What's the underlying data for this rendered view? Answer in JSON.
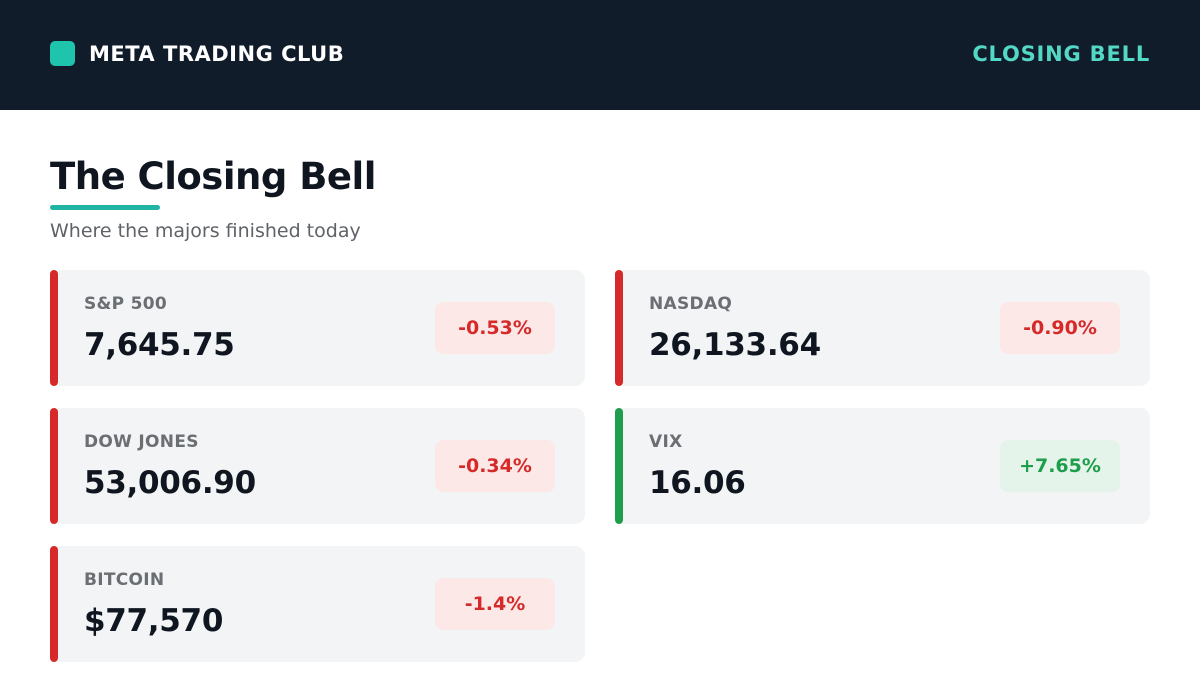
{
  "header": {
    "brand": "META TRADING CLUB",
    "tag": "CLOSING BELL"
  },
  "page": {
    "title": "The Closing Bell",
    "subtitle": "Where the majors finished today"
  },
  "colors": {
    "header_bg": "#111c2b",
    "brand_icon": "#1fc4ad",
    "tag_text": "#53d8c6",
    "title_underline": "#1fb5a2",
    "card_bg": "#f2f4f5",
    "negative_accent": "#d62a2a",
    "negative_text": "#d62a2a",
    "negative_pill_bg": "#fde8e8",
    "positive_accent": "#1e9e4c",
    "positive_text": "#1e9e4c",
    "positive_pill_bg": "#e4f4ea"
  },
  "markets": [
    {
      "label": "S&P 500",
      "value": "7,645.75",
      "change": "-0.53%",
      "direction": "down"
    },
    {
      "label": "NASDAQ",
      "value": "26,133.64",
      "change": "-0.90%",
      "direction": "down"
    },
    {
      "label": "DOW JONES",
      "value": "53,006.90",
      "change": "-0.34%",
      "direction": "down"
    },
    {
      "label": "VIX",
      "value": "16.06",
      "change": "+7.65%",
      "direction": "up"
    },
    {
      "label": "BITCOIN",
      "value": "$77,570",
      "change": "-1.4%",
      "direction": "down"
    }
  ]
}
